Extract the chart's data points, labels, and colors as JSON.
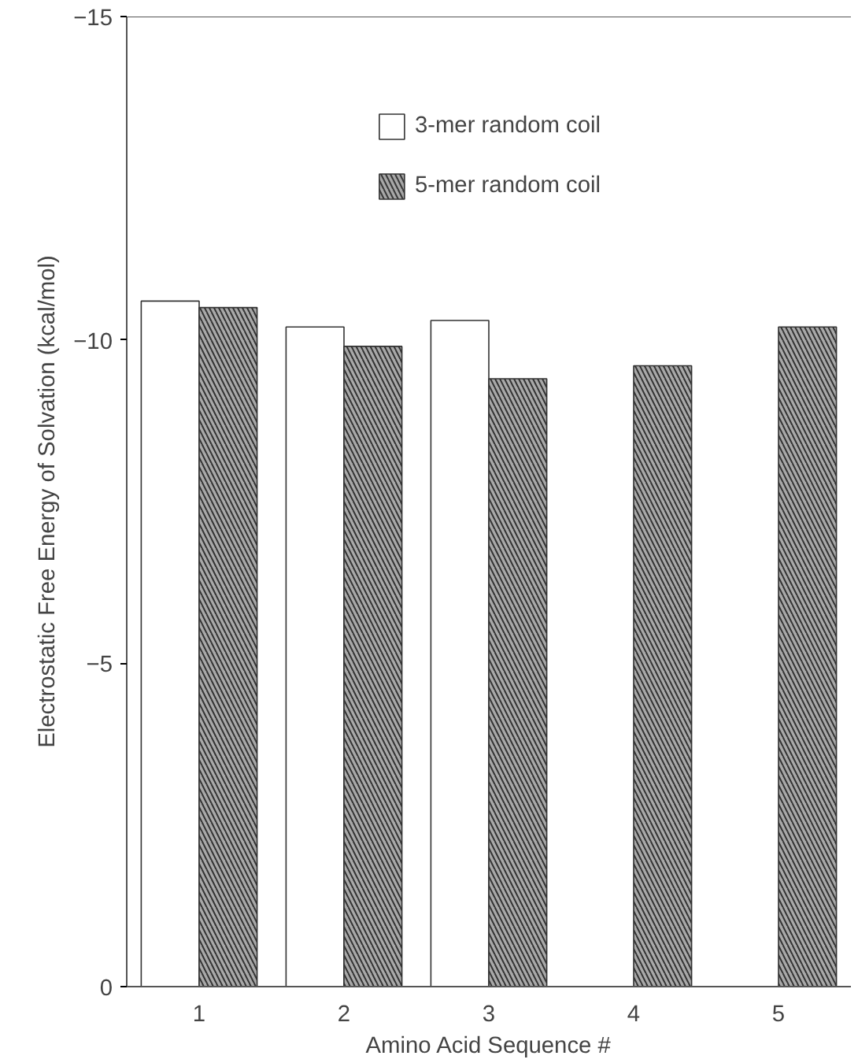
{
  "chart_data": {
    "type": "bar",
    "xlabel": "Amino Acid Sequence #",
    "ylabel": "Electrostatic Free Energy of Solvation (kcal/mol)",
    "categories": [
      "1",
      "2",
      "3",
      "4",
      "5"
    ],
    "series": [
      {
        "name": "3-mer random coil",
        "color": "#ffffff",
        "values": [
          -10.6,
          -10.2,
          -10.3,
          null,
          null
        ]
      },
      {
        "name": "5-mer random coil",
        "color": "#a8a8a8",
        "values": [
          -10.5,
          -9.9,
          -9.4,
          -9.6,
          -10.2
        ]
      }
    ],
    "ylim": [
      0,
      -15
    ],
    "yticks": [
      0,
      -5,
      -10,
      -15
    ],
    "grid": false,
    "legend": "top"
  }
}
